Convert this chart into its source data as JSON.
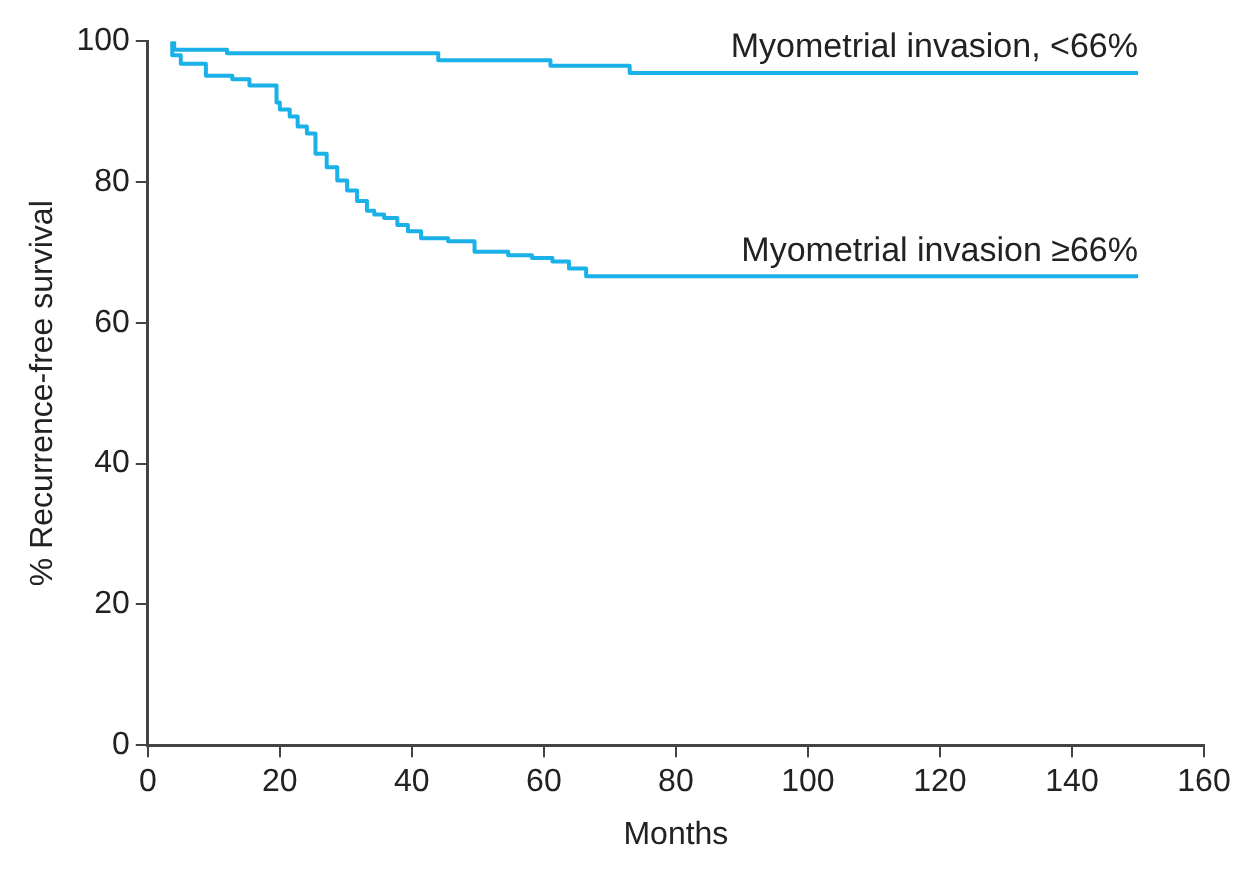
{
  "chart_data": {
    "type": "step",
    "xlabel": "Months",
    "ylabel": "% Recurrence-free survival",
    "xlim": [
      0,
      160
    ],
    "xticks": [
      0,
      20,
      40,
      60,
      80,
      100,
      120,
      140,
      160
    ],
    "ylim": [
      0,
      100
    ],
    "yticks": [
      0,
      20,
      40,
      60,
      80,
      100
    ],
    "grid": false,
    "legend": false,
    "marker": "none",
    "line_style": "solid",
    "series": [
      {
        "name": "Myometrial invasion, <66%",
        "color": "#1ab0e8",
        "x": [
          4,
          12,
          44,
          61,
          73,
          81,
          150
        ],
        "values": [
          100,
          98.8,
          98.3,
          97.3,
          96.5,
          95.5,
          95.5
        ]
      },
      {
        "name": "Myometrial invasion ≥66%",
        "color": "#1ab0e8",
        "x": [
          3.7,
          5,
          8.8,
          12.8,
          15.4,
          19.5,
          20,
          21.5,
          22.7,
          24.1,
          25.4,
          27.1,
          28.7,
          30.2,
          31.7,
          33.2,
          34.3,
          35.8,
          37.8,
          39.4,
          41.4,
          45.5,
          49.5,
          54.6,
          58.2,
          61.3,
          63.8,
          66.4,
          69.4,
          150
        ],
        "values": [
          100,
          98,
          96.8,
          95.1,
          94.6,
          93.7,
          91.3,
          90.3,
          89.3,
          87.9,
          86.9,
          84,
          82.1,
          80.2,
          78.8,
          77.3,
          75.9,
          75.4,
          74.9,
          73.9,
          73,
          72,
          71.6,
          70.1,
          69.6,
          69.2,
          68.7,
          67.7,
          66.6,
          66.6
        ]
      }
    ]
  }
}
